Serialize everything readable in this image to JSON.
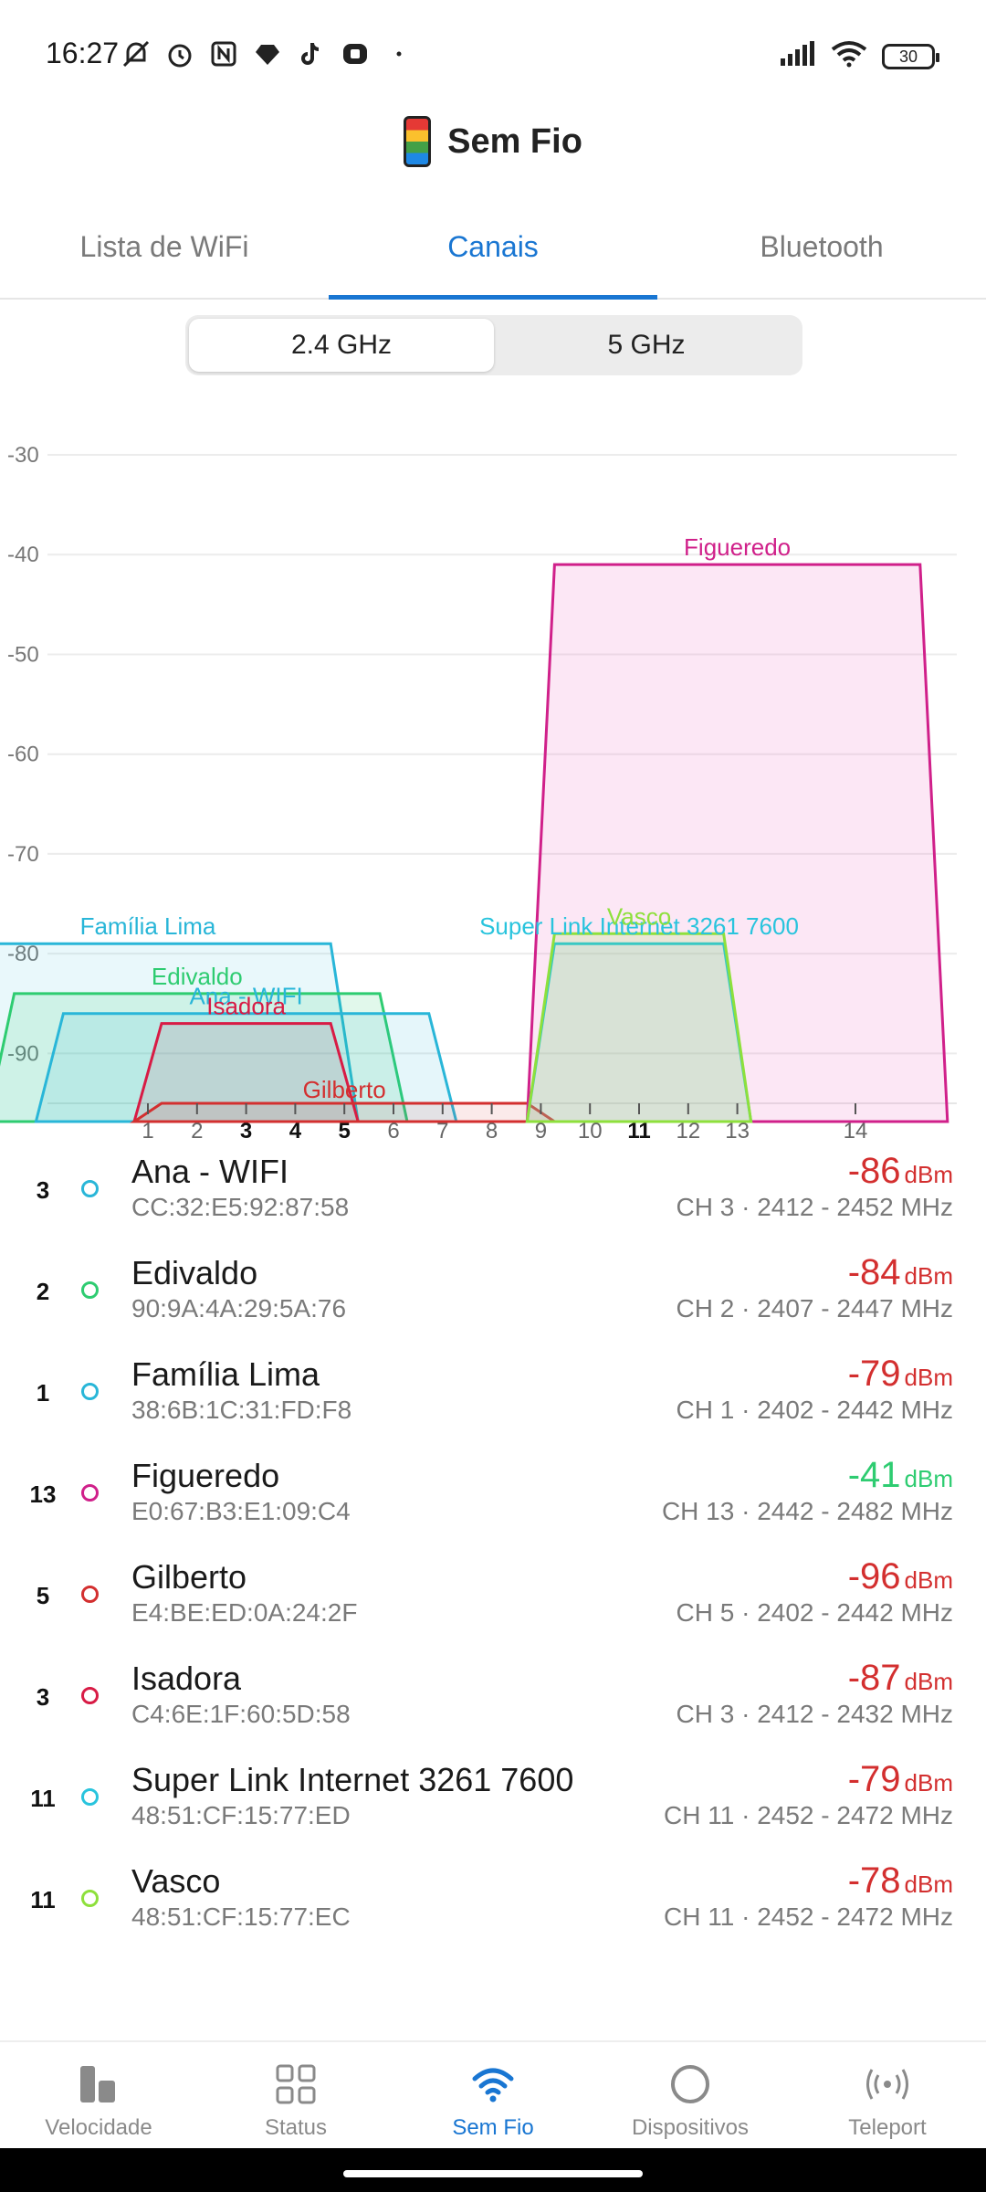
{
  "status_bar": {
    "time": "16:27",
    "battery": "30"
  },
  "app": {
    "title": "Sem Fio"
  },
  "tabs": [
    {
      "label": "Lista de WiFi",
      "active": false
    },
    {
      "label": "Canais",
      "active": true
    },
    {
      "label": "Bluetooth",
      "active": false
    }
  ],
  "band_toggle": [
    {
      "label": "2.4 GHz",
      "active": true
    },
    {
      "label": "5 GHz",
      "active": false
    }
  ],
  "chart_data": {
    "type": "area",
    "ylim": [
      -95,
      -30
    ],
    "yticks": [
      -30,
      -40,
      -50,
      -60,
      -70,
      -80,
      -90
    ],
    "xticks": [
      {
        "label": "1",
        "bold": false
      },
      {
        "label": "2",
        "bold": false
      },
      {
        "label": "3",
        "bold": true
      },
      {
        "label": "4",
        "bold": true
      },
      {
        "label": "5",
        "bold": true
      },
      {
        "label": "6",
        "bold": false
      },
      {
        "label": "7",
        "bold": false
      },
      {
        "label": "8",
        "bold": false
      },
      {
        "label": "9",
        "bold": false
      },
      {
        "label": "10",
        "bold": false
      },
      {
        "label": "11",
        "bold": true
      },
      {
        "label": "12",
        "bold": false
      },
      {
        "label": "13",
        "bold": false
      },
      {
        "label": "14",
        "bold": false
      }
    ],
    "series": [
      {
        "name": "Família Lima",
        "channel": 1,
        "width_mhz": 40,
        "dbm": -79,
        "color": "#29b6d8",
        "fill": "rgba(41,182,216,0.10)"
      },
      {
        "name": "Edivaldo",
        "channel": 2,
        "width_mhz": 40,
        "dbm": -84,
        "color": "#2ecc71",
        "fill": "rgba(46,204,113,0.14)"
      },
      {
        "name": "Ana - WIFI",
        "channel": 3,
        "width_mhz": 40,
        "dbm": -86,
        "color": "#29b6d8",
        "fill": "rgba(41,182,216,0.12)"
      },
      {
        "name": "Isadora",
        "channel": 3,
        "width_mhz": 20,
        "dbm": -87,
        "color": "#d81b45",
        "fill": "rgba(216,27,69,0.10)"
      },
      {
        "name": "Gilberto",
        "channel": 5,
        "width_mhz": 40,
        "dbm": -96,
        "color": "#d32f2f",
        "fill": "rgba(211,47,47,0.10)"
      },
      {
        "name": "Figueredo",
        "channel": 13,
        "width_mhz": 40,
        "dbm": -41,
        "color": "#d0208a",
        "fill": "rgba(240,120,200,0.18)"
      },
      {
        "name": "Super Link Internet 3261 7600",
        "channel": 11,
        "width_mhz": 20,
        "dbm": -79,
        "color": "#29c4dd",
        "fill": "rgba(41,196,221,0.10)"
      },
      {
        "name": "Vasco",
        "channel": 11,
        "width_mhz": 20,
        "dbm": -78,
        "color": "#8ee03c",
        "fill": "rgba(142,224,60,0.16)"
      }
    ]
  },
  "networks": [
    {
      "channel": "3",
      "name": "Ana - WIFI",
      "mac": "CC:32:E5:92:87:58",
      "dbm": "-86",
      "unit": "dBm",
      "detail": "CH 3 · 2412 - 2452 MHz",
      "dot_color": "#29b6d8",
      "signal_color": "#d32f2f"
    },
    {
      "channel": "2",
      "name": "Edivaldo",
      "mac": "90:9A:4A:29:5A:76",
      "dbm": "-84",
      "unit": "dBm",
      "detail": "CH 2 · 2407 - 2447 MHz",
      "dot_color": "#2ecc71",
      "signal_color": "#d32f2f"
    },
    {
      "channel": "1",
      "name": "Família Lima",
      "mac": "38:6B:1C:31:FD:F8",
      "dbm": "-79",
      "unit": "dBm",
      "detail": "CH 1 · 2402 - 2442 MHz",
      "dot_color": "#29b6d8",
      "signal_color": "#d32f2f"
    },
    {
      "channel": "13",
      "name": "Figueredo",
      "mac": "E0:67:B3:E1:09:C4",
      "dbm": "-41",
      "unit": "dBm",
      "detail": "CH 13 · 2442 - 2482 MHz",
      "dot_color": "#d0208a",
      "signal_color": "#2ecc71"
    },
    {
      "channel": "5",
      "name": "Gilberto",
      "mac": "E4:BE:ED:0A:24:2F",
      "dbm": "-96",
      "unit": "dBm",
      "detail": "CH 5 · 2402 - 2442 MHz",
      "dot_color": "#d32f2f",
      "signal_color": "#d32f2f"
    },
    {
      "channel": "3",
      "name": "Isadora",
      "mac": "C4:6E:1F:60:5D:58",
      "dbm": "-87",
      "unit": "dBm",
      "detail": "CH 3 · 2412 - 2432 MHz",
      "dot_color": "#d81b45",
      "signal_color": "#d32f2f"
    },
    {
      "channel": "11",
      "name": "Super Link Internet 3261 7600",
      "mac": "48:51:CF:15:77:ED",
      "dbm": "-79",
      "unit": "dBm",
      "detail": "CH 11 · 2452 - 2472 MHz",
      "dot_color": "#29c4dd",
      "signal_color": "#d32f2f"
    },
    {
      "channel": "11",
      "name": "Vasco",
      "mac": "48:51:CF:15:77:EC",
      "dbm": "-78",
      "unit": "dBm",
      "detail": "CH 11 · 2452 - 2472 MHz",
      "dot_color": "#8ee03c",
      "signal_color": "#d32f2f"
    }
  ],
  "bottom_nav": [
    {
      "label": "Velocidade",
      "icon": "speed-bars-icon",
      "active": false
    },
    {
      "label": "Status",
      "icon": "grid-icon",
      "active": false
    },
    {
      "label": "Sem Fio",
      "icon": "wifi-icon",
      "active": true
    },
    {
      "label": "Dispositivos",
      "icon": "circle-icon",
      "active": false
    },
    {
      "label": "Teleport",
      "icon": "broadcast-icon",
      "active": false
    }
  ]
}
